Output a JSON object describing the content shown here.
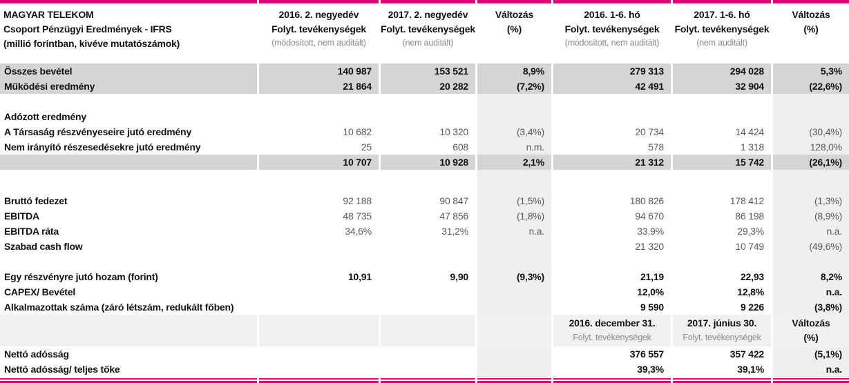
{
  "colors": {
    "brand_magenta": "#e20074",
    "row_band_gray": "#d5d5d5",
    "column_band_gray": "#efefef",
    "subheader_gray": "#f1f1f1"
  },
  "header": {
    "left": [
      "MAGYAR TELEKOM",
      "Csoport Pénzügyi Eredmények - IFRS",
      "(millió forintban, kivéve mutatószámok)"
    ],
    "cols": [
      {
        "line1": "2016. 2. negyedév",
        "line2": "Folyt. tevékenységek",
        "line3": "(módosított, nem auditált)"
      },
      {
        "line1": "2017. 2. negyedév",
        "line2": "Folyt. tevékenységek",
        "line3": "(nem auditált)"
      },
      {
        "line1": "Változás",
        "line2": "(%)",
        "line3": ""
      },
      {
        "line1": "2016. 1-6. hó",
        "line2": "Folyt. tevékenységek",
        "line3": "(módosított, nem auditált)"
      },
      {
        "line1": "2017. 1-6. hó",
        "line2": "Folyt. tevékenységek",
        "line3": "(nem auditált)"
      },
      {
        "line1": "Változás",
        "line2": "(%)",
        "line3": ""
      }
    ]
  },
  "table": {
    "rows": [
      {
        "type": "data",
        "shade": true,
        "bold": true,
        "label": "Összes bevétel",
        "cells": [
          "140 987",
          "153 521",
          "8,9%",
          "279 313",
          "294 028",
          "5,3%"
        ]
      },
      {
        "type": "data",
        "shade": true,
        "bold": true,
        "label": "Működési eredmény",
        "cells": [
          "21 864",
          "20 282",
          "(7,2%)",
          "42 491",
          "32 904",
          "(22,6%)"
        ]
      },
      {
        "type": "spacer"
      },
      {
        "type": "data",
        "shade": false,
        "bold": false,
        "label": "Adózott eredmény",
        "cells": [
          "",
          "",
          "",
          "",
          "",
          ""
        ]
      },
      {
        "type": "data",
        "shade": false,
        "bold": false,
        "label": "A Társaság részvényeseire jutó eredmény",
        "cells": [
          "10 682",
          "10 320",
          "(3,4%)",
          "20 734",
          "14 424",
          "(30,4%)"
        ]
      },
      {
        "type": "data",
        "shade": false,
        "bold": false,
        "label": "Nem irányító részesedésekre jutó eredmény",
        "cells": [
          "25",
          "608",
          "n.m.",
          "578",
          "1 318",
          "128,0%"
        ]
      },
      {
        "type": "data",
        "shade": true,
        "bold": true,
        "label": "",
        "cells": [
          "10 707",
          "10 928",
          "2,1%",
          "21 312",
          "15 742",
          "(26,1%)"
        ]
      },
      {
        "type": "spacer",
        "tall": true
      },
      {
        "type": "data",
        "shade": false,
        "bold": false,
        "label": "Bruttó fedezet",
        "cells": [
          "92 188",
          "90 847",
          "(1,5%)",
          "180 826",
          "178 412",
          "(1,3%)"
        ]
      },
      {
        "type": "data",
        "shade": false,
        "bold": false,
        "label": "EBITDA",
        "cells": [
          "48 735",
          "47 856",
          "(1,8%)",
          "94 670",
          "86 198",
          "(8,9%)"
        ]
      },
      {
        "type": "data",
        "shade": false,
        "bold": false,
        "label": "EBITDA ráta",
        "cells": [
          "34,6%",
          "31,2%",
          "n.a.",
          "33,9%",
          "29,3%",
          "n.a."
        ]
      },
      {
        "type": "data",
        "shade": false,
        "bold": false,
        "label": "Szabad cash flow",
        "cells": [
          "",
          "",
          "",
          "21 320",
          "10 749",
          "(49,6%)"
        ]
      },
      {
        "type": "spacer"
      },
      {
        "type": "data",
        "shade": false,
        "bold": true,
        "label": "Egy részvényre jutó hozam (forint)",
        "cells": [
          "10,91",
          "9,90",
          "(9,3%)",
          "21,19",
          "22,93",
          "8,2%"
        ]
      },
      {
        "type": "data",
        "shade": false,
        "bold": true,
        "label": "CAPEX/ Bevétel",
        "cells": [
          "",
          "",
          "",
          "12,0%",
          "12,8%",
          "n.a."
        ]
      },
      {
        "type": "data",
        "shade": false,
        "bold": true,
        "label": "Alkalmazottak száma (záró létszám, redukált főben)",
        "cells": [
          "",
          "",
          "",
          "9 590",
          "9 226",
          "(3,8%)"
        ]
      },
      {
        "type": "subheader",
        "cols": [
          {
            "line1": "2016. december 31.",
            "line2": "Folyt. tevékenységek",
            "strong2": false
          },
          {
            "line1": "2017. június 30.",
            "line2": "Folyt. tevékenységek",
            "strong2": false
          },
          {
            "line1": "Változás",
            "line2": "(%)",
            "strong2": true
          }
        ]
      },
      {
        "type": "data",
        "shade": false,
        "bold": true,
        "label": "Nettó adósság",
        "cells": [
          "",
          "",
          "",
          "376 557",
          "357 422",
          "(5,1%)"
        ]
      },
      {
        "type": "data",
        "shade": false,
        "bold": true,
        "label": "Nettó adósság/ teljes tőke",
        "cells": [
          "",
          "",
          "",
          "39,3%",
          "39,1%",
          "n.a."
        ]
      }
    ]
  }
}
